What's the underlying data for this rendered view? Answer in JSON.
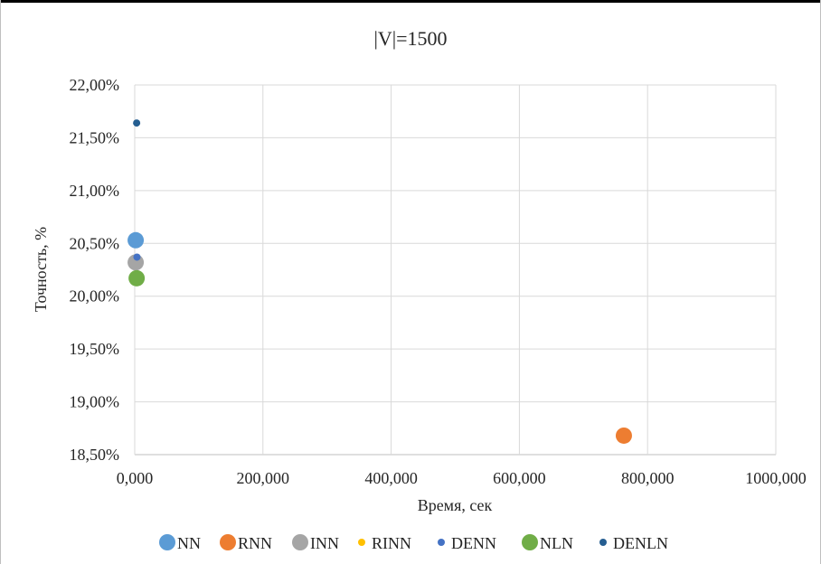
{
  "chart_data": {
    "type": "scatter",
    "title": "|V|=1500",
    "xlabel": "Время, сек",
    "ylabel": "Точность, %",
    "xlim": [
      0,
      1000
    ],
    "ylim": [
      18.5,
      22.0
    ],
    "x_ticks": [
      0,
      200,
      400,
      600,
      800,
      1000
    ],
    "y_ticks": [
      18.5,
      19.0,
      19.5,
      20.0,
      20.5,
      21.0,
      21.5,
      22.0
    ],
    "x_tick_labels": [
      "0,000",
      "200,000",
      "400,000",
      "600,000",
      "800,000",
      "1000,000"
    ],
    "y_tick_labels": [
      "18,50%",
      "19,00%",
      "19,50%",
      "20,00%",
      "20,50%",
      "21,00%",
      "21,50%",
      "22,00%"
    ],
    "grid": true,
    "legend_position": "bottom",
    "series": [
      {
        "name": "NN",
        "color": "#5b9bd5",
        "marker": "large",
        "x": [
          1.5
        ],
        "y": [
          20.53
        ]
      },
      {
        "name": "RNN",
        "color": "#ed7d31",
        "marker": "large",
        "x": [
          763
        ],
        "y": [
          18.68
        ]
      },
      {
        "name": "INN",
        "color": "#a5a5a5",
        "marker": "large",
        "x": [
          1.5
        ],
        "y": [
          20.32
        ]
      },
      {
        "name": "RINN",
        "color": "#ffc000",
        "marker": "small",
        "x": [],
        "y": []
      },
      {
        "name": "DENN",
        "color": "#4472c4",
        "marker": "small",
        "x": [
          3.5
        ],
        "y": [
          20.37
        ]
      },
      {
        "name": "NLN",
        "color": "#70ad47",
        "marker": "large",
        "x": [
          3
        ],
        "y": [
          20.17
        ]
      },
      {
        "name": "DENLN",
        "color": "#255e91",
        "marker": "small",
        "x": [
          3
        ],
        "y": [
          21.64
        ]
      }
    ]
  }
}
